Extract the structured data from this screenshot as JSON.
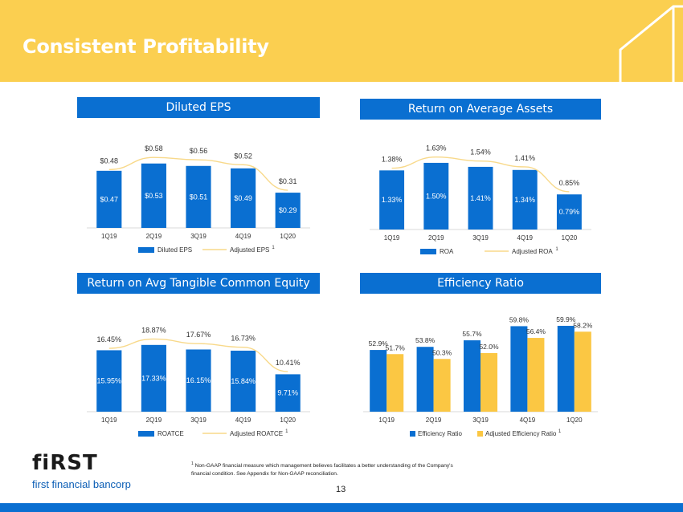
{
  "slide": {
    "title": "Consistent Profitability",
    "page_number": "13",
    "brand_name": "fiRST",
    "brand_tagline": "first financial bancorp",
    "footnote_marker": "1",
    "footnote_text": "Non-GAAP financial measure which management believes facilitates a better understanding of the Company's financial condition.  See Appendix for Non-GAAP reconciliation."
  },
  "colors": {
    "banner": "#fbcf50",
    "header_blue": "#0a6fd1",
    "bar_blue": "#0a6fd1",
    "bar_gold": "#fbc743",
    "adjusted_line": "#f8d98a"
  },
  "headers": {
    "eps": "Diluted EPS",
    "roa": "Return on Average Assets",
    "roatce": "Return on Avg Tangible Common Equity",
    "efficiency": "Efficiency Ratio"
  },
  "chart_data": [
    {
      "id": "eps",
      "type": "bar",
      "title": "Diluted EPS",
      "categories": [
        "1Q19",
        "2Q19",
        "3Q19",
        "4Q19",
        "1Q20"
      ],
      "series": [
        {
          "name": "Diluted EPS",
          "kind": "bar",
          "values": [
            0.47,
            0.53,
            0.51,
            0.49,
            0.29
          ],
          "labels": [
            "$0.47",
            "$0.53",
            "$0.51",
            "$0.49",
            "$0.29"
          ]
        },
        {
          "name": "Adjusted EPS",
          "kind": "line",
          "values": [
            0.48,
            0.58,
            0.56,
            0.52,
            0.31
          ],
          "labels": [
            "$0.48",
            "$0.58",
            "$0.56",
            "$0.52",
            "$0.31"
          ],
          "legend_sup": "1"
        }
      ],
      "ylim": [
        0,
        0.7
      ],
      "grid": false,
      "legend": "bottom"
    },
    {
      "id": "roa",
      "type": "bar",
      "title": "Return on Average Assets",
      "categories": [
        "1Q19",
        "2Q19",
        "3Q19",
        "4Q19",
        "1Q20"
      ],
      "series": [
        {
          "name": "ROA",
          "kind": "bar",
          "values": [
            1.33,
            1.5,
            1.41,
            1.34,
            0.79
          ],
          "labels": [
            "1.33%",
            "1.50%",
            "1.41%",
            "1.34%",
            "0.79%"
          ]
        },
        {
          "name": "Adjusted ROA",
          "kind": "line",
          "values": [
            1.38,
            1.63,
            1.54,
            1.41,
            0.85
          ],
          "labels": [
            "1.38%",
            "1.63%",
            "1.54%",
            "1.41%",
            "0.85%"
          ],
          "legend_sup": "1"
        }
      ],
      "ylim": [
        0,
        1.95
      ],
      "grid": false,
      "legend": "bottom"
    },
    {
      "id": "roatce",
      "type": "bar",
      "title": "Return on Avg Tangible Common Equity",
      "categories": [
        "1Q19",
        "2Q19",
        "3Q19",
        "4Q19",
        "1Q20"
      ],
      "series": [
        {
          "name": "ROATCE",
          "kind": "bar",
          "values": [
            15.95,
            17.33,
            16.15,
            15.84,
            9.71
          ],
          "labels": [
            "15.95%",
            "17.33%",
            "16.15%",
            "15.84%",
            "9.71%"
          ]
        },
        {
          "name": "Adjusted ROATCE",
          "kind": "line",
          "values": [
            16.45,
            18.87,
            17.67,
            16.73,
            10.41
          ],
          "labels": [
            "16.45%",
            "18.87%",
            "17.67%",
            "16.73%",
            "10.41%"
          ],
          "legend_sup": "1"
        }
      ],
      "ylim": [
        0,
        22.5
      ],
      "grid": false,
      "legend": "bottom"
    },
    {
      "id": "efficiency",
      "type": "bar",
      "title": "Efficiency Ratio",
      "categories": [
        "1Q19",
        "2Q19",
        "3Q19",
        "4Q19",
        "1Q20"
      ],
      "series": [
        {
          "name": "Efficiency Ratio",
          "kind": "bar",
          "values": [
            52.9,
            53.8,
            55.7,
            59.8,
            59.9
          ],
          "labels": [
            "52.9%",
            "53.8%",
            "55.7%",
            "59.8%",
            "59.9%"
          ]
        },
        {
          "name": "Adjusted Efficiency Ratio",
          "kind": "bar",
          "values": [
            51.7,
            50.3,
            52.0,
            56.4,
            58.2
          ],
          "labels": [
            "51.7%",
            "50.3%",
            "52.0%",
            "56.4%",
            "58.2%"
          ],
          "legend_sup": "1"
        }
      ],
      "ylim": [
        35,
        62
      ],
      "grid": false,
      "legend": "bottom"
    }
  ]
}
